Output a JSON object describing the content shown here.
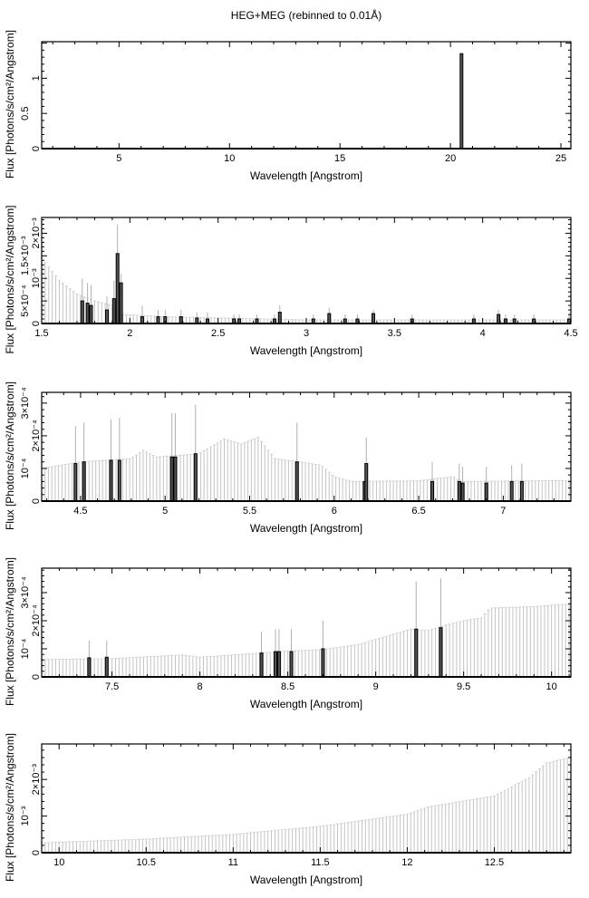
{
  "title": "HEG+MEG (rebinned to 0.01Å)",
  "chart_data": [
    {
      "type": "bar",
      "xlabel": "Wavelength [Angstrom]",
      "ylabel": "Flux [Photons/s/cm²/Angstrom]",
      "xlim": [
        1.5,
        25.45
      ],
      "ylim": [
        0,
        1.52
      ],
      "xticks": [
        {
          "v": 5,
          "label": "5"
        },
        {
          "v": 10,
          "label": "10"
        },
        {
          "v": 15,
          "label": "15"
        },
        {
          "v": 20,
          "label": "20"
        },
        {
          "v": 25,
          "label": "25"
        }
      ],
      "yticks": [
        {
          "v": 0,
          "label": "0"
        },
        {
          "v": 0.5,
          "label": "0.5"
        },
        {
          "v": 1,
          "label": "1"
        }
      ],
      "continuum": [
        [
          1.5,
          0.002
        ],
        [
          25.45,
          0.002
        ]
      ],
      "lines": [
        {
          "x": 20.5,
          "y": 1.35,
          "err": 1.35
        }
      ],
      "bin": 0.2
    },
    {
      "type": "bar",
      "xlabel": "Wavelength [Angstrom]",
      "ylabel": "Flux [Photons/s/cm²/Angstrom]",
      "xlim": [
        1.5,
        4.5
      ],
      "ylim": [
        0,
        0.00235
      ],
      "xticks": [
        {
          "v": 1.5,
          "label": "1.5"
        },
        {
          "v": 2,
          "label": "2"
        },
        {
          "v": 2.5,
          "label": "2.5"
        },
        {
          "v": 3,
          "label": "3"
        },
        {
          "v": 3.5,
          "label": "3.5"
        },
        {
          "v": 4,
          "label": "4"
        },
        {
          "v": 4.5,
          "label": "4.5"
        }
      ],
      "yticks": [
        {
          "v": 0,
          "label": "0"
        },
        {
          "v": 0.0005,
          "label": "5×10⁻⁴"
        },
        {
          "v": 0.001,
          "label": "10⁻³"
        },
        {
          "v": 0.0015,
          "label": "1.5×10⁻³"
        },
        {
          "v": 0.002,
          "label": "2×10⁻³"
        }
      ],
      "continuum": [
        [
          1.5,
          0.00145
        ],
        [
          1.6,
          0.00095
        ],
        [
          1.7,
          0.00065
        ],
        [
          1.8,
          0.0005
        ],
        [
          1.9,
          0.0004
        ],
        [
          1.95,
          0.0002
        ],
        [
          2.2,
          0.00015
        ],
        [
          3.0,
          8e-05
        ],
        [
          4.5,
          8e-05
        ]
      ],
      "lines": [
        {
          "x": 1.73,
          "y": 0.0005,
          "err": 0.001
        },
        {
          "x": 1.76,
          "y": 0.00045,
          "err": 0.0009
        },
        {
          "x": 1.78,
          "y": 0.0004,
          "err": 0.00085
        },
        {
          "x": 1.87,
          "y": 0.0003,
          "err": 0.0006
        },
        {
          "x": 1.91,
          "y": 0.00055,
          "err": 0.00095
        },
        {
          "x": 1.93,
          "y": 0.00155,
          "err": 0.0022
        },
        {
          "x": 1.95,
          "y": 0.0009,
          "err": 0.0011
        },
        {
          "x": 2.07,
          "y": 0.00015,
          "err": 0.0004
        },
        {
          "x": 2.16,
          "y": 0.00015,
          "err": 0.0003
        },
        {
          "x": 2.2,
          "y": 0.00015,
          "err": 0.0003
        },
        {
          "x": 2.29,
          "y": 0.00015,
          "err": 0.0003
        },
        {
          "x": 2.38,
          "y": 0.00012,
          "err": 0.00025
        },
        {
          "x": 2.44,
          "y": 0.0001,
          "err": 0.00025
        },
        {
          "x": 2.59,
          "y": 0.0001,
          "err": 0.0002
        },
        {
          "x": 2.62,
          "y": 0.0001,
          "err": 0.0002
        },
        {
          "x": 2.72,
          "y": 0.0001,
          "err": 0.0002
        },
        {
          "x": 2.82,
          "y": 0.0001,
          "err": 0.0002
        },
        {
          "x": 2.85,
          "y": 0.00025,
          "err": 0.0004
        },
        {
          "x": 3.04,
          "y": 0.0001,
          "err": 0.0002
        },
        {
          "x": 3.13,
          "y": 0.00022,
          "err": 0.00035
        },
        {
          "x": 3.22,
          "y": 0.0001,
          "err": 0.0002
        },
        {
          "x": 3.29,
          "y": 0.0001,
          "err": 0.0002
        },
        {
          "x": 3.38,
          "y": 0.00022,
          "err": 0.0003
        },
        {
          "x": 3.6,
          "y": 0.0001,
          "err": 0.0002
        },
        {
          "x": 3.95,
          "y": 0.0001,
          "err": 0.0002
        },
        {
          "x": 4.09,
          "y": 0.0002,
          "err": 0.0003
        },
        {
          "x": 4.13,
          "y": 0.0001,
          "err": 0.0002
        },
        {
          "x": 4.18,
          "y": 0.0001,
          "err": 0.0002
        },
        {
          "x": 4.29,
          "y": 0.0001,
          "err": 0.0002
        },
        {
          "x": 4.49,
          "y": 0.0001,
          "err": 0.0002
        }
      ],
      "bin": 0.02
    },
    {
      "type": "bar",
      "xlabel": "Wavelength [Angstrom]",
      "ylabel": "Flux [Photons/s/cm²/Angstrom]",
      "xlim": [
        4.27,
        7.4
      ],
      "ylim": [
        0,
        0.000333
      ],
      "xticks": [
        {
          "v": 4.5,
          "label": "4.5"
        },
        {
          "v": 5,
          "label": "5"
        },
        {
          "v": 5.5,
          "label": "5.5"
        },
        {
          "v": 6,
          "label": "6"
        },
        {
          "v": 6.5,
          "label": "6.5"
        },
        {
          "v": 7,
          "label": "7"
        }
      ],
      "yticks": [
        {
          "v": 0,
          "label": "0"
        },
        {
          "v": 0.0001,
          "label": "10⁻⁴"
        },
        {
          "v": 0.0002,
          "label": "2×10⁻⁴"
        },
        {
          "v": 0.0003,
          "label": "3×10⁻⁴"
        }
      ],
      "continuum": [
        [
          4.27,
          0.0001
        ],
        [
          4.5,
          0.00012
        ],
        [
          4.8,
          0.00013
        ],
        [
          4.87,
          0.000155
        ],
        [
          4.95,
          0.000135
        ],
        [
          5.2,
          0.000145
        ],
        [
          5.35,
          0.00019
        ],
        [
          5.45,
          0.000175
        ],
        [
          5.55,
          0.000195
        ],
        [
          5.65,
          0.00013
        ],
        [
          5.8,
          0.00012
        ],
        [
          5.92,
          0.00011
        ],
        [
          6.0,
          7.5e-05
        ],
        [
          6.1,
          6e-05
        ],
        [
          6.5,
          6.2e-05
        ],
        [
          6.7,
          7.5e-05
        ],
        [
          6.75,
          6e-05
        ],
        [
          7.4,
          6.3e-05
        ]
      ],
      "lines": [
        {
          "x": 4.47,
          "y": 0.000115,
          "err": 0.00023
        },
        {
          "x": 4.52,
          "y": 0.00012,
          "err": 0.00024
        },
        {
          "x": 4.68,
          "y": 0.000125,
          "err": 0.00025
        },
        {
          "x": 4.73,
          "y": 0.000125,
          "err": 0.000255
        },
        {
          "x": 5.04,
          "y": 0.000135,
          "err": 0.00027
        },
        {
          "x": 5.06,
          "y": 0.000135,
          "err": 0.00027
        },
        {
          "x": 5.18,
          "y": 0.000145,
          "err": 0.000295
        },
        {
          "x": 5.78,
          "y": 0.00012,
          "err": 0.00024
        },
        {
          "x": 6.18,
          "y": 6e-05,
          "err": 6e-05
        },
        {
          "x": 6.19,
          "y": 0.000115,
          "err": 0.000195
        },
        {
          "x": 6.58,
          "y": 6e-05,
          "err": 0.00012
        },
        {
          "x": 6.74,
          "y": 6e-05,
          "err": 0.000115
        },
        {
          "x": 6.76,
          "y": 5.5e-05,
          "err": 0.000105
        },
        {
          "x": 6.9,
          "y": 5.5e-05,
          "err": 0.000105
        },
        {
          "x": 7.05,
          "y": 6e-05,
          "err": 0.00011
        },
        {
          "x": 7.11,
          "y": 6e-05,
          "err": 0.000115
        }
      ],
      "bin": 0.02
    },
    {
      "type": "bar",
      "xlabel": "Wavelength [Angstrom]",
      "ylabel": "Flux [Photons/s/cm²/Angstrom]",
      "xlim": [
        7.1,
        10.11
      ],
      "ylim": [
        0,
        0.000387
      ],
      "xticks": [
        {
          "v": 7.5,
          "label": "7.5"
        },
        {
          "v": 8,
          "label": "8"
        },
        {
          "v": 8.5,
          "label": "8.5"
        },
        {
          "v": 9,
          "label": "9"
        },
        {
          "v": 9.5,
          "label": "9.5"
        },
        {
          "v": 10,
          "label": "10"
        }
      ],
      "yticks": [
        {
          "v": 0,
          "label": "0"
        },
        {
          "v": 0.0001,
          "label": "10⁻⁴"
        },
        {
          "v": 0.0002,
          "label": "2×10⁻⁴"
        },
        {
          "v": 0.0003,
          "label": "3×10⁻⁴"
        }
      ],
      "continuum": [
        [
          7.1,
          6.2e-05
        ],
        [
          7.5,
          6.5e-05
        ],
        [
          7.9,
          7.8e-05
        ],
        [
          8.0,
          7e-05
        ],
        [
          8.35,
          8.5e-05
        ],
        [
          8.5,
          9.2e-05
        ],
        [
          8.7,
          9.7e-05
        ],
        [
          8.9,
          0.000115
        ],
        [
          9.2,
          0.00017
        ],
        [
          9.3,
          0.000165
        ],
        [
          9.4,
          0.000185
        ],
        [
          9.5,
          0.0002
        ],
        [
          9.6,
          0.00021
        ],
        [
          9.65,
          0.000245
        ],
        [
          9.9,
          0.00025
        ],
        [
          10.11,
          0.00026
        ]
      ],
      "lines": [
        {
          "x": 7.37,
          "y": 6.8e-05,
          "err": 0.00013
        },
        {
          "x": 7.47,
          "y": 7e-05,
          "err": 0.00013
        },
        {
          "x": 8.35,
          "y": 8.5e-05,
          "err": 0.00016
        },
        {
          "x": 8.43,
          "y": 9e-05,
          "err": 0.00017
        },
        {
          "x": 8.45,
          "y": 9e-05,
          "err": 0.00017
        },
        {
          "x": 8.52,
          "y": 9e-05,
          "err": 0.00017
        },
        {
          "x": 8.7,
          "y": 0.0001,
          "err": 0.0002
        },
        {
          "x": 9.23,
          "y": 0.00017,
          "err": 0.00034
        },
        {
          "x": 9.37,
          "y": 0.000175,
          "err": 0.00035
        }
      ],
      "bin": 0.02
    },
    {
      "type": "bar",
      "xlabel": "Wavelength [Angstrom]",
      "ylabel": "Flux [Photons/s/cm²/Angstrom]",
      "xlim": [
        9.9,
        12.94
      ],
      "ylim": [
        0,
        0.00297
      ],
      "xticks": [
        {
          "v": 10,
          "label": "10"
        },
        {
          "v": 10.5,
          "label": "10.5"
        },
        {
          "v": 11,
          "label": "11"
        },
        {
          "v": 11.5,
          "label": "11.5"
        },
        {
          "v": 12,
          "label": "12"
        },
        {
          "v": 12.5,
          "label": "12.5"
        }
      ],
      "yticks": [
        {
          "v": 0,
          "label": "0"
        },
        {
          "v": 0.001,
          "label": "10⁻³"
        },
        {
          "v": 0.002,
          "label": "2×10⁻³"
        }
      ],
      "continuum": [
        [
          9.9,
          0.00027
        ],
        [
          10.5,
          0.00037
        ],
        [
          11.0,
          0.0005
        ],
        [
          11.5,
          0.00072
        ],
        [
          12.0,
          0.00105
        ],
        [
          12.12,
          0.00125
        ],
        [
          12.5,
          0.00155
        ],
        [
          12.7,
          0.00205
        ],
        [
          12.8,
          0.00245
        ],
        [
          12.94,
          0.0026
        ]
      ],
      "lines": [],
      "bin": 0.02
    }
  ]
}
